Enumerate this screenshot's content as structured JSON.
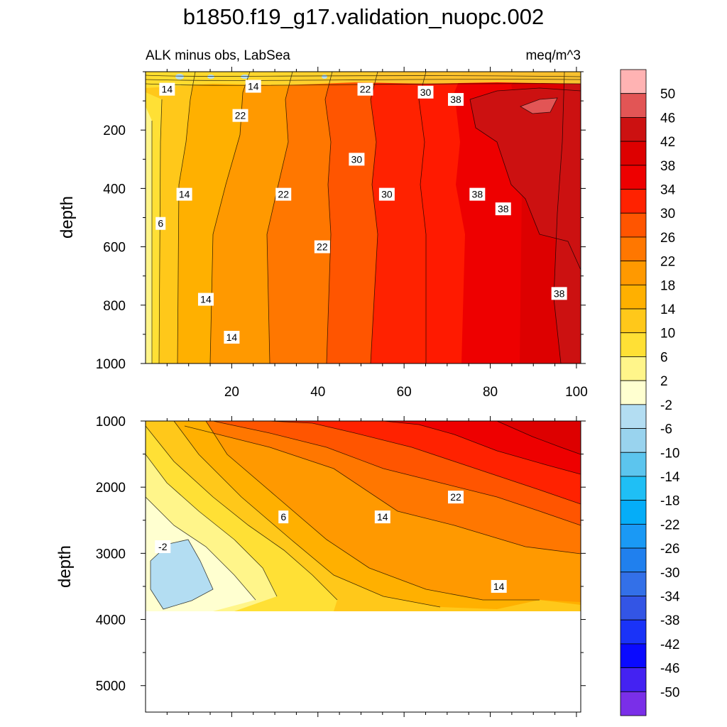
{
  "title": "b1850.f19_g17.validation_nuopc.002",
  "subtitle_left": "ALK minus obs, LabSea",
  "subtitle_right": "meq/m^3",
  "chart_data": [
    {
      "type": "heatmap",
      "panel": "upper",
      "title": "",
      "xlabel": "",
      "ylabel": "depth",
      "xlim": [
        0,
        101
      ],
      "ylim": [
        0,
        1000
      ],
      "y_inverted": true,
      "x_ticks": [
        20,
        40,
        60,
        80,
        100
      ],
      "y_ticks": [
        200,
        400,
        600,
        800,
        1000
      ],
      "grid": false,
      "contour_interval": 4,
      "contour_labels": [
        {
          "text": "14",
          "x": 5,
          "z": 60
        },
        {
          "text": "14",
          "x": 25,
          "z": 50
        },
        {
          "text": "22",
          "x": 51,
          "z": 60
        },
        {
          "text": "30",
          "x": 65,
          "z": 70
        },
        {
          "text": "38",
          "x": 72,
          "z": 95
        },
        {
          "text": "22",
          "x": 22,
          "z": 150
        },
        {
          "text": "30",
          "x": 49,
          "z": 300
        },
        {
          "text": "14",
          "x": 9,
          "z": 420
        },
        {
          "text": "22",
          "x": 32,
          "z": 420
        },
        {
          "text": "30",
          "x": 56,
          "z": 420
        },
        {
          "text": "38",
          "x": 77,
          "z": 420
        },
        {
          "text": "38",
          "x": 83,
          "z": 470
        },
        {
          "text": "6",
          "x": 3.5,
          "z": 520
        },
        {
          "text": "22",
          "x": 41,
          "z": 600
        },
        {
          "text": "14",
          "x": 14,
          "z": 780
        },
        {
          "text": "38",
          "x": 96,
          "z": 760
        },
        {
          "text": "14",
          "x": 20,
          "z": 910
        }
      ],
      "description_values": {
        "x_positions": [
          0,
          5,
          10,
          20,
          30,
          40,
          50,
          60,
          70,
          80,
          90,
          101
        ],
        "values_at_500m": [
          3,
          8,
          13,
          16,
          20,
          23,
          28,
          32,
          35,
          38,
          40,
          40
        ]
      }
    },
    {
      "type": "heatmap",
      "panel": "lower",
      "title": "",
      "xlabel": "",
      "ylabel": "depth",
      "xlim": [
        0,
        101
      ],
      "ylim": [
        1000,
        5400
      ],
      "y_inverted": true,
      "x_ticks": [
        20,
        40,
        60,
        80,
        100
      ],
      "y_ticks": [
        1000,
        2000,
        3000,
        4000,
        5000
      ],
      "data_bottom_depth": 3850,
      "grid": false,
      "contour_interval": 4,
      "contour_labels": [
        {
          "text": "22",
          "x": 72,
          "z": 2150
        },
        {
          "text": "6",
          "x": 32,
          "z": 2450
        },
        {
          "text": "14",
          "x": 55,
          "z": 2450
        },
        {
          "text": "-2",
          "x": 4,
          "z": 2900
        },
        {
          "text": "14",
          "x": 82,
          "z": 3500
        }
      ]
    }
  ],
  "colorbar": {
    "labels": [
      "50",
      "46",
      "42",
      "38",
      "34",
      "30",
      "26",
      "22",
      "18",
      "14",
      "10",
      "6",
      "2",
      "-2",
      "-6",
      "-10",
      "-14",
      "-18",
      "-22",
      "-26",
      "-30",
      "-34",
      "-38",
      "-42",
      "-46",
      "-50"
    ],
    "colors": [
      "#FFB3B3",
      "#E25555",
      "#CC1111",
      "#DD0000",
      "#EE0000",
      "#FF2200",
      "#FF5500",
      "#FF7700",
      "#FF9900",
      "#FFB000",
      "#FFC81A",
      "#FFE035",
      "#FFF58A",
      "#FFFFD0",
      "#B3DDF2",
      "#99D3EE",
      "#5CC5EE",
      "#1FBFF5",
      "#05ADF8",
      "#1A99F5",
      "#2080EE",
      "#3370E8",
      "#3355E5",
      "#1A33F8",
      "#0A0AFF",
      "#4422F2",
      "#7A2FE8"
    ]
  }
}
